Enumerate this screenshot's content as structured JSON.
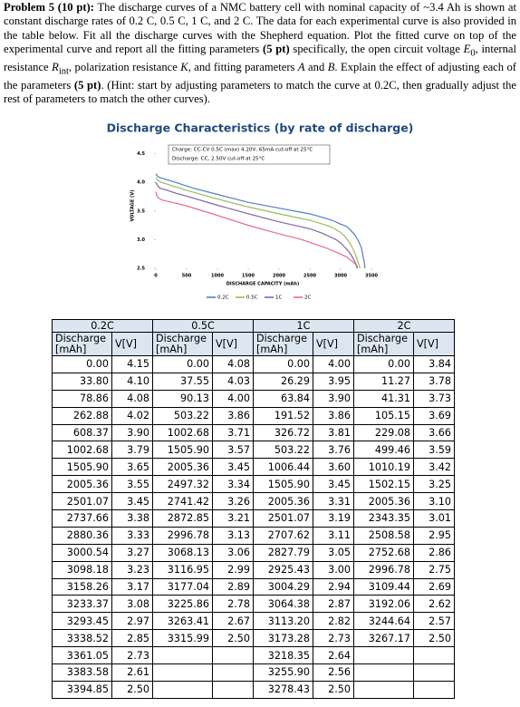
{
  "problem": {
    "runs": [
      "Problem 5 (10 pt):",
      " The discharge curves of a NMC battery cell with nominal capacity of ~3.4 Ah is shown at constant discharge rates of 0.2 C, 0.5 C, 1 C, and 2 C. The data for each experimental curve is also provided in the table below. Fit all the discharge curves with the Shepherd equation. Plot the fitted curve on top of the experimental curve and report all the fitting parameters ",
      "(5 pt)",
      " specifically, the open circuit voltage ",
      "E",
      "0",
      ", internal resistance ",
      "R",
      "int",
      ", polarization resistance ",
      "K",
      ", and fitting parameters ",
      "A",
      " and ",
      "B",
      ". Explain the effect of adjusting each of the parameters ",
      "(5 pt)",
      ". (Hint: start by adjusting parameters to match the curve at 0.2C, then gradually adjust the rest of parameters to match the other curves)."
    ]
  },
  "chart_data": {
    "type": "line",
    "title": "Discharge Characteristics (by rate of discharge)",
    "x_label": "DISCHARGE CAPACITY (mAh)",
    "y_label": "VOLTAGE (V)",
    "annotations": [
      "Charge:     CC-CV 0.5C (max) 4.20V, 65mA cut-off at 25°C",
      "Discharge: CC, 2.50V cut-off at 25°C"
    ],
    "xlim": [
      0,
      3500
    ],
    "xticks": [
      0,
      500,
      1000,
      1500,
      2000,
      2500,
      3000,
      3500
    ],
    "ylim": [
      2.5,
      4.7
    ],
    "yticks": [
      2.5,
      {
        "value": 3,
        "label": "3.0"
      },
      3.5,
      {
        "value": 4,
        "label": "4.0"
      },
      4.5
    ],
    "grid": false,
    "legend": "bottom",
    "series": [
      {
        "name": "0.2C",
        "color": "#4f81bd"
      },
      {
        "name": "0.5C",
        "color": "#9bbb59"
      },
      {
        "name": "1C",
        "color": "#8064a2"
      },
      {
        "name": "2C",
        "color": "#e46c8a"
      }
    ]
  },
  "table": {
    "groups": [
      "0.2C",
      "0.5C",
      "1C",
      "2C"
    ],
    "columns": [
      "Discharge [mAh]",
      "V[V]",
      "Discharge [mAh]",
      "V[V]",
      "Discharge [mAh]",
      "V[V]",
      "Discharge [mAh]",
      "V[V]"
    ],
    "rows": [
      [
        "0.00",
        "4.15",
        "0.00",
        "4.08",
        "0.00",
        "4.00",
        "0.00",
        "3.84"
      ],
      [
        "33.80",
        "4.10",
        "37.55",
        "4.03",
        "26.29",
        "3.95",
        "11.27",
        "3.78"
      ],
      [
        "78.86",
        "4.08",
        "90.13",
        "4.00",
        "63.84",
        "3.90",
        "41.31",
        "3.73"
      ],
      [
        "262.88",
        "4.02",
        "503.22",
        "3.86",
        "191.52",
        "3.86",
        "105.15",
        "3.69"
      ],
      [
        "608.37",
        "3.90",
        "1002.68",
        "3.71",
        "326.72",
        "3.81",
        "229.08",
        "3.66"
      ],
      [
        "1002.68",
        "3.79",
        "1505.90",
        "3.57",
        "503.22",
        "3.76",
        "499.46",
        "3.59"
      ],
      [
        "1505.90",
        "3.65",
        "2005.36",
        "3.45",
        "1006.44",
        "3.60",
        "1010.19",
        "3.42"
      ],
      [
        "2005.36",
        "3.55",
        "2497.32",
        "3.34",
        "1505.90",
        "3.45",
        "1502.15",
        "3.25"
      ],
      [
        "2501.07",
        "3.45",
        "2741.42",
        "3.26",
        "2005.36",
        "3.31",
        "2005.36",
        "3.10"
      ],
      [
        "2737.66",
        "3.38",
        "2872.85",
        "3.21",
        "2501.07",
        "3.19",
        "2343.35",
        "3.01"
      ],
      [
        "2880.36",
        "3.33",
        "2996.78",
        "3.13",
        "2707.62",
        "3.11",
        "2508.58",
        "2.95"
      ],
      [
        "3000.54",
        "3.27",
        "3068.13",
        "3.06",
        "2827.79",
        "3.05",
        "2752.68",
        "2.86"
      ],
      [
        "3098.18",
        "3.23",
        "3116.95",
        "2.99",
        "2925.43",
        "3.00",
        "2996.78",
        "2.75"
      ],
      [
        "3158.26",
        "3.17",
        "3177.04",
        "2.89",
        "3004.29",
        "2.94",
        "3109.44",
        "2.69"
      ],
      [
        "3233.37",
        "3.08",
        "3225.86",
        "2.78",
        "3064.38",
        "2.87",
        "3192.06",
        "2.62"
      ],
      [
        "3293.45",
        "2.97",
        "3263.41",
        "2.67",
        "3113.20",
        "2.82",
        "3244.64",
        "2.57"
      ],
      [
        "3338.52",
        "2.85",
        "3315.99",
        "2.50",
        "3173.28",
        "2.73",
        "3267.17",
        "2.50"
      ],
      [
        "3361.05",
        "2.73",
        null,
        null,
        "3218.35",
        "2.64",
        null,
        null
      ],
      [
        "3383.58",
        "2.61",
        null,
        null,
        "3255.90",
        "2.56",
        null,
        null
      ],
      [
        "3394.85",
        "2.50",
        null,
        null,
        "3278.43",
        "2.50",
        null,
        null
      ]
    ]
  }
}
